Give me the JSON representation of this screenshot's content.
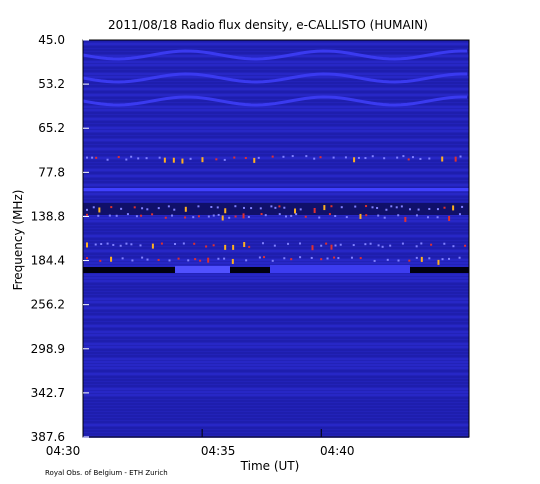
{
  "chart_data": {
    "type": "spectrogram",
    "title": "2011/08/18  Radio flux density, e-CALLISTO (HUMAIN)",
    "x_label": "Time (UT)",
    "y_label": "Frequency (MHz)",
    "footer": "Royal Obs. of Belgium - ETH Zurich",
    "xlim": [
      270,
      286.2
    ],
    "xticks": [
      {
        "value": 270,
        "label": "04:30"
      },
      {
        "value": 275,
        "label": "04:35"
      },
      {
        "value": 280,
        "label": "04:40"
      }
    ],
    "y_categories": [
      "45.0",
      "53.2",
      "65.2",
      "77.8",
      "138.8",
      "184.4",
      "256.2",
      "298.9",
      "342.7",
      "387.6"
    ]
  }
}
